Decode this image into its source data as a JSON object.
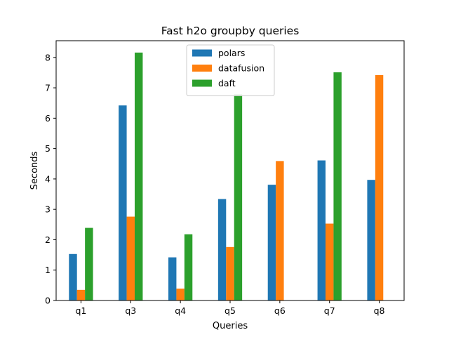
{
  "chart_data": {
    "type": "bar",
    "title": "Fast h2o groupby queries",
    "xlabel": "Queries",
    "ylabel": "Seconds",
    "categories": [
      "q1",
      "q3",
      "q4",
      "q5",
      "q6",
      "q7",
      "q8"
    ],
    "ylim": [
      0,
      8.55
    ],
    "yticks": [
      0,
      1,
      2,
      3,
      4,
      5,
      6,
      7,
      8
    ],
    "grid": false,
    "legend_position": "top-center",
    "series": [
      {
        "name": "polars",
        "color": "#1f77b4",
        "values": [
          1.53,
          6.42,
          1.42,
          3.34,
          3.81,
          4.61,
          3.97
        ]
      },
      {
        "name": "datafusion",
        "color": "#ff7f0e",
        "values": [
          0.35,
          2.76,
          0.39,
          1.76,
          4.59,
          2.53,
          7.42
        ]
      },
      {
        "name": "daft",
        "color": "#2ca02c",
        "values": [
          2.39,
          8.16,
          2.18,
          6.78,
          null,
          7.51,
          null
        ]
      }
    ]
  }
}
